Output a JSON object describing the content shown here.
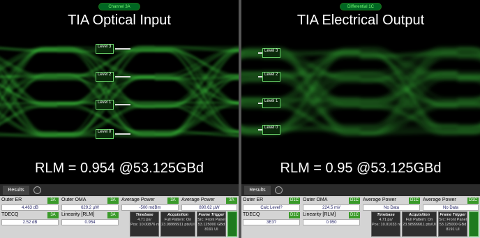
{
  "panels": [
    {
      "channel": "Channel 3A",
      "title": "TIA Optical Input",
      "levels": [
        "Level 3",
        "Level 2",
        "Level 1",
        "Level 0"
      ],
      "rlm": "RLM = 0.954 @53.125GBd",
      "tab": "Results",
      "measurements": [
        {
          "name": "Outer ER",
          "badge": "3A",
          "value": "4.463 dB"
        },
        {
          "name": "Outer OMA",
          "badge": "3A",
          "value": "629.2 µW"
        },
        {
          "name": "Average Power",
          "badge": "3A",
          "value": "-500 mdBm"
        },
        {
          "name": "Average Power",
          "badge": "3A",
          "value": "890.62 µW"
        },
        {
          "name": "TDECQ",
          "badge": "3A",
          "value": "2.52 dB"
        },
        {
          "name": "Linearity [RLM]",
          "badge": "3A",
          "value": "0.954"
        }
      ],
      "footer": [
        {
          "title": "Timebase",
          "lines": [
            "4.71 ps/",
            "Pos: 10.00876 ns"
          ]
        },
        {
          "title": "Acquisition",
          "lines": [
            "Full Pattern: On",
            "23.98999911 pts/UI"
          ]
        },
        {
          "title": "Frame Trigger",
          "lines": [
            "Src: Front Panel",
            "53.125000 GBd",
            "8191 UI"
          ]
        }
      ]
    },
    {
      "channel": "Differential 1C",
      "title": "TIA Electrical Output",
      "levels": [
        "Level 3",
        "Level 2",
        "Level 1",
        "Level 0"
      ],
      "rlm": "RLM = 0.95 @53.125GBd",
      "tab": "Results",
      "measurements": [
        {
          "name": "Outer ER",
          "badge": "D1C",
          "value": "Calc Level?"
        },
        {
          "name": "Outer OMA",
          "badge": "D1C",
          "value": "224.5 mV"
        },
        {
          "name": "Average Power",
          "badge": "D1C",
          "value": "No Data"
        },
        {
          "name": "Average Power",
          "badge": "D1C",
          "value": "No Data"
        },
        {
          "name": "TDECQ",
          "badge": "D1C",
          "value": "3E3?"
        },
        {
          "name": "Linearity [RLM]",
          "badge": "D1C",
          "value": "0.950"
        }
      ],
      "footer": [
        {
          "title": "Timebase",
          "lines": [
            "4.71 ps/",
            "Pos: 10.01033 ns"
          ]
        },
        {
          "title": "Acquisition",
          "lines": [
            "Full Pattern: On",
            "23.98999911 pts/UI"
          ]
        },
        {
          "title": "Frame Trigger",
          "lines": [
            "Src: Front Panel",
            "53.125000 GBd",
            "8191 UI"
          ]
        }
      ]
    }
  ]
}
